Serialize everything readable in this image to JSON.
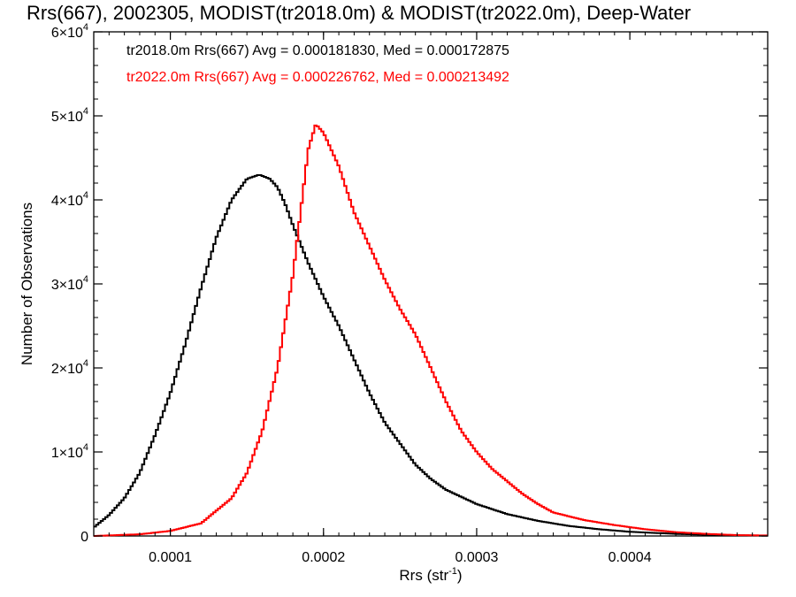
{
  "chart_data": {
    "type": "line",
    "title": "Rrs(667), 2002305, MODIST(tr2018.0m) & MODIST(tr2022.0m), Deep-Water",
    "xlabel": "Rrs (str",
    "xlabel_sup": "-1",
    "xlabel_end": ")",
    "ylabel": "Number of Observations",
    "xlim": [
      5e-05,
      0.00049
    ],
    "ylim": [
      0,
      60000
    ],
    "x_ticks": [
      {
        "value": 0.0001,
        "label": "0.0001"
      },
      {
        "value": 0.0002,
        "label": "0.0002"
      },
      {
        "value": 0.0003,
        "label": "0.0003"
      },
      {
        "value": 0.0004,
        "label": "0.0004"
      }
    ],
    "y_ticks": [
      {
        "value": 0,
        "mant": "0",
        "exp": ""
      },
      {
        "value": 10000,
        "mant": "1×10",
        "exp": "4"
      },
      {
        "value": 20000,
        "mant": "2×10",
        "exp": "4"
      },
      {
        "value": 30000,
        "mant": "3×10",
        "exp": "4"
      },
      {
        "value": 40000,
        "mant": "4×10",
        "exp": "4"
      },
      {
        "value": 50000,
        "mant": "5×10",
        "exp": "4"
      },
      {
        "value": 60000,
        "mant": "6×10",
        "exp": "4"
      }
    ],
    "grid": false,
    "legend_position": "top-left",
    "series": [
      {
        "name": "tr2018.0m",
        "color": "#000000",
        "legend_text": "tr2018.0m Rrs(667) Avg = 0.000181830, Med = 0.000172875",
        "points": [
          [
            5e-05,
            1000
          ],
          [
            6e-05,
            2500
          ],
          [
            7e-05,
            4500
          ],
          [
            8e-05,
            7500
          ],
          [
            9e-05,
            12000
          ],
          [
            0.0001,
            17000
          ],
          [
            0.00011,
            23000
          ],
          [
            0.00012,
            29500
          ],
          [
            0.00013,
            35500
          ],
          [
            0.00014,
            40000
          ],
          [
            0.00015,
            42500
          ],
          [
            0.000158,
            43000
          ],
          [
            0.000165,
            42500
          ],
          [
            0.00017,
            41500
          ],
          [
            0.000175,
            39500
          ],
          [
            0.00018,
            37000
          ],
          [
            0.00019,
            32500
          ],
          [
            0.0002,
            28500
          ],
          [
            0.00021,
            25000
          ],
          [
            0.00022,
            21000
          ],
          [
            0.00023,
            17000
          ],
          [
            0.00024,
            13500
          ],
          [
            0.00025,
            11000
          ],
          [
            0.00026,
            8500
          ],
          [
            0.00027,
            6800
          ],
          [
            0.00028,
            5500
          ],
          [
            0.0003,
            3800
          ],
          [
            0.00032,
            2600
          ],
          [
            0.00034,
            1800
          ],
          [
            0.00036,
            1200
          ],
          [
            0.00038,
            800
          ],
          [
            0.0004,
            500
          ],
          [
            0.00043,
            250
          ],
          [
            0.00046,
            100
          ],
          [
            0.00049,
            40
          ]
        ]
      },
      {
        "name": "tr2022.0m",
        "color": "#ff0000",
        "legend_text": "tr2022.0m Rrs(667) Avg = 0.000226762, Med = 0.000213492",
        "points": [
          [
            5e-05,
            0
          ],
          [
            8e-05,
            200
          ],
          [
            0.0001,
            600
          ],
          [
            0.00012,
            1500
          ],
          [
            0.00014,
            4500
          ],
          [
            0.00015,
            7500
          ],
          [
            0.00016,
            12500
          ],
          [
            0.00017,
            20000
          ],
          [
            0.00018,
            31000
          ],
          [
            0.000185,
            38500
          ],
          [
            0.00019,
            46000
          ],
          [
            0.000195,
            49000
          ],
          [
            0.0002,
            48000
          ],
          [
            0.00021,
            44000
          ],
          [
            0.00022,
            38500
          ],
          [
            0.00023,
            34500
          ],
          [
            0.00024,
            30500
          ],
          [
            0.00025,
            27000
          ],
          [
            0.00026,
            24000
          ],
          [
            0.00027,
            20000
          ],
          [
            0.00028,
            16000
          ],
          [
            0.00029,
            12500
          ],
          [
            0.0003,
            10000
          ],
          [
            0.00031,
            8000
          ],
          [
            0.00032,
            6500
          ],
          [
            0.00033,
            5000
          ],
          [
            0.00034,
            3800
          ],
          [
            0.00035,
            2800
          ],
          [
            0.00037,
            1900
          ],
          [
            0.00039,
            1300
          ],
          [
            0.00041,
            800
          ],
          [
            0.00043,
            450
          ],
          [
            0.00045,
            250
          ],
          [
            0.00047,
            100
          ],
          [
            0.00049,
            60
          ]
        ]
      }
    ]
  }
}
